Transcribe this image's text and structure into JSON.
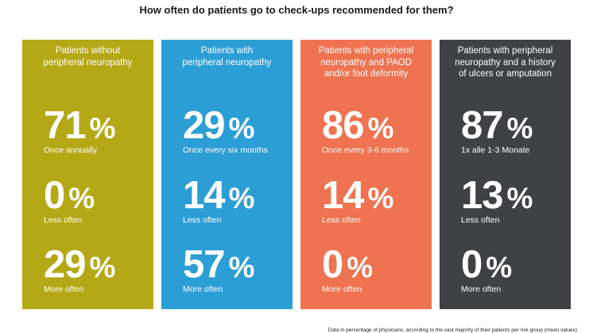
{
  "title": "How often do patients go to check-ups recommended for them?",
  "footnote": "Data in percentage of physicians, according to the vast majority of their patients per risk group (mean values)",
  "colors": {
    "olive": "#b5a816",
    "blue": "#2c9ed6",
    "orange": "#ef7350",
    "dark": "#3f4144"
  },
  "chart_data": {
    "type": "table",
    "title": "How often do patients go to check-ups recommended for them?",
    "unit": "%",
    "groups": [
      {
        "name": "Patients without peripheral neuropathy",
        "header_lines": [
          "Patients without",
          "peripheral neuropathy"
        ],
        "color": "#b5a816",
        "stats": [
          {
            "value": 71,
            "label": "Once annually"
          },
          {
            "value": 0,
            "label": "Less often"
          },
          {
            "value": 29,
            "label": "More often"
          }
        ]
      },
      {
        "name": "Patients with peripheral neuropathy",
        "header_lines": [
          "Patients with",
          "peripheral neuropathy"
        ],
        "color": "#2c9ed6",
        "stats": [
          {
            "value": 29,
            "label": "Once every six months"
          },
          {
            "value": 14,
            "label": "Less often"
          },
          {
            "value": 57,
            "label": "More often"
          }
        ]
      },
      {
        "name": "Patients with peripheral neuropathy and PAOD and/or foot deformity",
        "header_lines": [
          "Patients with peripheral",
          "neuropathy and PAOD",
          "and/or foot deformity"
        ],
        "color": "#ef7350",
        "stats": [
          {
            "value": 86,
            "label": "Once every 3-6 months"
          },
          {
            "value": 14,
            "label": "Less often"
          },
          {
            "value": 0,
            "label": "More often"
          }
        ]
      },
      {
        "name": "Patients with peripheral neuropathy and a history of ulcers or amputation",
        "header_lines": [
          "Patients with peripheral",
          "neuropathy and a history",
          "of ulcers or amputation"
        ],
        "color": "#3f4144",
        "stats": [
          {
            "value": 87,
            "label": "1x alle 1-3 Monate"
          },
          {
            "value": 13,
            "label": "Less often"
          },
          {
            "value": 0,
            "label": "More often"
          }
        ]
      }
    ]
  }
}
